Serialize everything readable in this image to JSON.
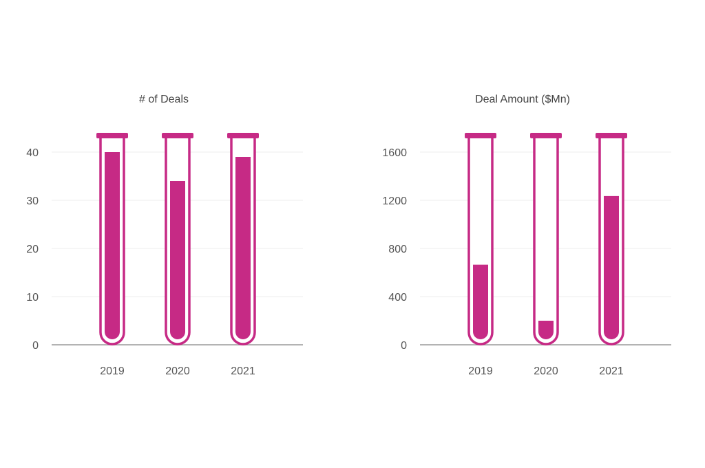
{
  "chart_data": [
    {
      "type": "bar",
      "title": "# of Deals",
      "categories": [
        "2019",
        "2020",
        "2021"
      ],
      "values": [
        40,
        34,
        39
      ],
      "ylim": [
        0,
        44
      ],
      "yticks": [
        0,
        10,
        20,
        30,
        40
      ],
      "xlabel": "",
      "ylabel": "",
      "grid": true,
      "color": "#c62a85"
    },
    {
      "type": "bar",
      "title": "Deal Amount ($Mn)",
      "categories": [
        "2019",
        "2020",
        "2021"
      ],
      "values": [
        665,
        200,
        1235
      ],
      "ylim": [
        0,
        1760
      ],
      "yticks": [
        0,
        400,
        800,
        1200,
        1600
      ],
      "xlabel": "",
      "ylabel": "",
      "grid": true,
      "color": "#c62a85"
    }
  ]
}
